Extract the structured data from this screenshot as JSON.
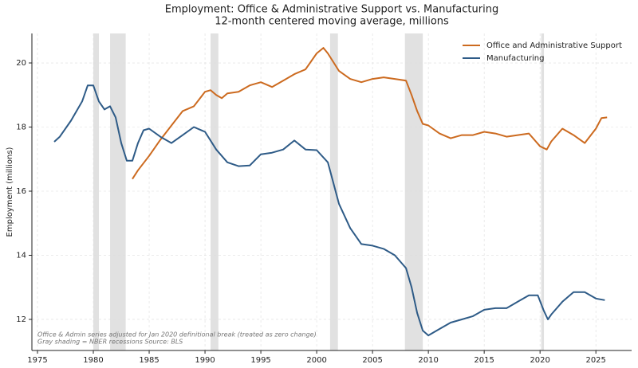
{
  "chart_data": {
    "type": "line",
    "title": "Employment: Office & Administrative Support vs. Manufacturing",
    "subtitle": "12-month centered moving average, millions",
    "y_label": "Employment (millions)",
    "annotations": [
      "Office & Admin series adjusted for Jan 2020 definitional break (treated as zero change)",
      "Gray shading = NBER recessions    Source: BLS"
    ],
    "xlim": [
      1974.5,
      2028.2
    ],
    "xticks": [
      1975,
      1980,
      1985,
      1990,
      1995,
      2000,
      2005,
      2010,
      2015,
      2020,
      2025
    ],
    "ylim": [
      11.03,
      20.92
    ],
    "yticks": [
      12,
      14,
      16,
      18,
      20
    ],
    "grid": true,
    "legend": "upper right",
    "recession_color": "#d9d9d9",
    "recessions": [
      [
        1980.0,
        1980.5
      ],
      [
        1981.5,
        1982.9
      ],
      [
        1990.5,
        1991.2
      ],
      [
        2001.2,
        2001.9
      ],
      [
        2007.9,
        2009.5
      ],
      [
        2020.1,
        2020.35
      ]
    ],
    "series": [
      {
        "name": "Office and Administrative Support",
        "color": "#cc6a1f",
        "x": [
          1983.5,
          1984,
          1985,
          1986,
          1987,
          1988,
          1989,
          1990,
          1990.5,
          1991,
          1991.5,
          1992,
          1993,
          1994,
          1995,
          1996,
          1997,
          1998,
          1999,
          2000,
          2000.6,
          2001,
          2002,
          2003,
          2004,
          2005,
          2006,
          2007,
          2008,
          2008.5,
          2009,
          2009.5,
          2010,
          2011,
          2012,
          2013,
          2014,
          2015,
          2016,
          2017,
          2018,
          2019,
          2020,
          2020.6,
          2021,
          2022,
          2023,
          2024,
          2025,
          2025.5,
          2026
        ],
        "values": [
          16.38,
          16.65,
          17.1,
          17.6,
          18.05,
          18.5,
          18.65,
          19.1,
          19.15,
          19.0,
          18.9,
          19.05,
          19.1,
          19.3,
          19.4,
          19.25,
          19.45,
          19.65,
          19.8,
          20.3,
          20.47,
          20.3,
          19.75,
          19.5,
          19.4,
          19.5,
          19.55,
          19.5,
          19.45,
          19.0,
          18.5,
          18.1,
          18.05,
          17.8,
          17.65,
          17.75,
          17.75,
          17.85,
          17.8,
          17.7,
          17.75,
          17.8,
          17.4,
          17.3,
          17.55,
          17.95,
          17.75,
          17.5,
          17.95,
          18.28,
          18.3
        ]
      },
      {
        "name": "Manufacturing",
        "color": "#2e5b87",
        "x": [
          1976.5,
          1977,
          1978,
          1979,
          1979.5,
          1980,
          1980.5,
          1981,
          1981.5,
          1982,
          1982.5,
          1983,
          1983.5,
          1984,
          1984.5,
          1985,
          1986,
          1987,
          1988,
          1989,
          1990,
          1991,
          1992,
          1993,
          1994,
          1995,
          1996,
          1997,
          1998,
          1999,
          2000,
          2001,
          2002,
          2003,
          2004,
          2005,
          2006,
          2007,
          2008,
          2008.5,
          2009,
          2009.5,
          2010,
          2011,
          2012,
          2013,
          2014,
          2015,
          2016,
          2017,
          2018,
          2019,
          2019.8,
          2020.3,
          2020.7,
          2021,
          2022,
          2023,
          2024,
          2025,
          2025.8
        ],
        "values": [
          17.54,
          17.7,
          18.2,
          18.8,
          19.3,
          19.3,
          18.8,
          18.55,
          18.65,
          18.3,
          17.5,
          16.95,
          16.95,
          17.5,
          17.9,
          17.95,
          17.7,
          17.5,
          17.75,
          18.0,
          17.85,
          17.3,
          16.9,
          16.78,
          16.8,
          17.15,
          17.2,
          17.3,
          17.58,
          17.3,
          17.28,
          16.9,
          15.6,
          14.85,
          14.35,
          14.3,
          14.2,
          14.0,
          13.6,
          13.0,
          12.2,
          11.65,
          11.5,
          11.7,
          11.9,
          12.0,
          12.1,
          12.3,
          12.35,
          12.35,
          12.55,
          12.75,
          12.75,
          12.3,
          12.0,
          12.15,
          12.55,
          12.85,
          12.85,
          12.65,
          12.6
        ]
      }
    ]
  }
}
